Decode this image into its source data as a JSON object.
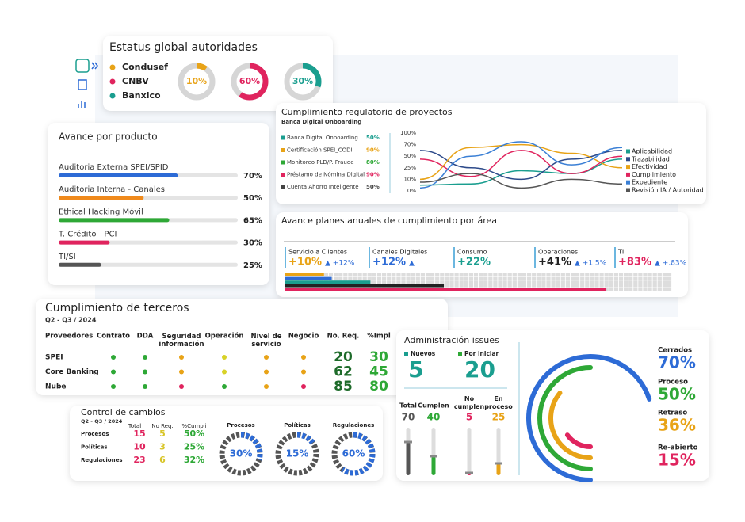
{
  "status": {
    "title": "Estatus global autoridades",
    "items": [
      {
        "name": "Condusef",
        "color": "#e8a317",
        "value": 10,
        "label": "10%"
      },
      {
        "name": "CNBV",
        "color": "#e0245e",
        "value": 60,
        "label": "60%"
      },
      {
        "name": "Banxico",
        "color": "#1a9e8f",
        "value": 30,
        "label": "30%"
      }
    ]
  },
  "producto": {
    "title": "Avance por producto",
    "items": [
      {
        "name": "Auditoria Externa SPEI/SPID",
        "color": "#2d6bd6",
        "value": 70,
        "label": "70%"
      },
      {
        "name": "Auditoria Interna - Canales",
        "color": "#f08a1c",
        "value": 50,
        "label": "50%"
      },
      {
        "name": "Ethical Hacking Móvil",
        "color": "#2ea836",
        "value": 65,
        "label": "65%"
      },
      {
        "name": "T. Crédito - PCI",
        "color": "#e0245e",
        "value": 30,
        "label": "30%"
      },
      {
        "name": "TI/SI",
        "color": "#555555",
        "value": 25,
        "label": "25%"
      }
    ]
  },
  "regulatorio": {
    "title": "Cumplimiento regulatorio de proyectos",
    "subtitle": "Banca Digital Onboarding",
    "projects": [
      {
        "name": "Banca Digital Onboarding",
        "color": "#1a9e8f",
        "label": "50%"
      },
      {
        "name": "Certificación SPEI_CODI",
        "color": "#e8a317",
        "label": "90%"
      },
      {
        "name": "Monitoreo PLD/P. Fraude",
        "color": "#2ea836",
        "label": "80%"
      },
      {
        "name": "Préstamo de Nómina Digital",
        "color": "#e0245e",
        "label": "90%"
      },
      {
        "name": "Cuenta Ahorro Inteligente",
        "color": "#444444",
        "label": "50%"
      }
    ],
    "yticks": [
      "100%",
      "70%",
      "50%",
      "25%",
      "10%",
      "0%"
    ],
    "series": [
      {
        "name": "Aplicabilidad",
        "color": "#1a9e8f",
        "values": [
          10,
          12,
          35,
          30,
          55
        ]
      },
      {
        "name": "Trazabilidad",
        "color": "#2d4a8a",
        "values": [
          70,
          40,
          20,
          55,
          70
        ]
      },
      {
        "name": "Efectividad",
        "color": "#e8a317",
        "values": [
          20,
          75,
          80,
          65,
          40
        ]
      },
      {
        "name": "Cumplimiento",
        "color": "#e0245e",
        "values": [
          55,
          25,
          70,
          30,
          60
        ]
      },
      {
        "name": "Expediente",
        "color": "#3a7fd5",
        "values": [
          5,
          60,
          85,
          45,
          75
        ]
      },
      {
        "name": "Revisión IA / Autoridad",
        "color": "#555555",
        "values": [
          15,
          30,
          5,
          20,
          12
        ]
      }
    ]
  },
  "planes": {
    "title": "Avance planes anuales de cumplimiento por área",
    "areas": [
      {
        "name": "Servicio a Clientes",
        "color": "#e8a317",
        "value": 10,
        "label": "+10%",
        "delta": "▲ +12%"
      },
      {
        "name": "Canales Digitales",
        "color": "#2d6bd6",
        "value": 12,
        "label": "+12%",
        "delta": "▲"
      },
      {
        "name": "Consumo",
        "color": "#1a9e8f",
        "value": 22,
        "label": "+22%"
      },
      {
        "name": "Operaciones",
        "color": "#222222",
        "value": 41,
        "label": "+41%",
        "delta": "▲ +1.5%"
      },
      {
        "name": "TI",
        "color": "#e0245e",
        "value": 83,
        "label": "+83%",
        "delta": "▲ +.83%"
      }
    ]
  },
  "terceros": {
    "title": "Cumplimiento de terceros",
    "subtitle": "Q2 - Q3 / 2024",
    "headers": [
      "Proveedores",
      "Contrato",
      "DDA",
      "Seguridad información",
      "Operación",
      "Nivel de servicio",
      "Negocio",
      "No. Req.",
      "%Impl"
    ],
    "rows": [
      {
        "name": "SPEI",
        "dots": [
          "#2ea836",
          "#2ea836",
          "#e8a317",
          "#d8d228",
          "#e8a317",
          "#e8a317"
        ],
        "no_req": "20",
        "impl": "30"
      },
      {
        "name": "Core Banking",
        "dots": [
          "#2ea836",
          "#2ea836",
          "#e8a317",
          "#d8d228",
          "#e8a317",
          "#e8a317"
        ],
        "no_req": "62",
        "impl": "45"
      },
      {
        "name": "Nube",
        "dots": [
          "#2ea836",
          "#2ea836",
          "#e0245e",
          "#2ea836",
          "#e8a317",
          "#e0245e"
        ],
        "no_req": "85",
        "impl": "80"
      }
    ]
  },
  "issues": {
    "title": "Administración issues",
    "counters": [
      {
        "name": "Nuevos",
        "color": "#1a9e8f",
        "value": "5"
      },
      {
        "name": "Por iniciar",
        "color": "#2ea836",
        "value": "20"
      }
    ],
    "columns": [
      {
        "name": "Total",
        "color": "#555555",
        "value": 70
      },
      {
        "name": "Cumplen",
        "color": "#2ea836",
        "value": 40
      },
      {
        "name": "No cumplen",
        "color": "#e0245e",
        "value": 5
      },
      {
        "name": "En proceso",
        "color": "#e8a317",
        "value": 25
      }
    ],
    "rings": [
      {
        "name": "Cerrados",
        "color": "#2d6bd6",
        "value": 70,
        "label": "70%"
      },
      {
        "name": "Proceso",
        "color": "#2ea836",
        "value": 50,
        "label": "50%"
      },
      {
        "name": "Retraso",
        "color": "#e8a317",
        "value": 36,
        "label": "36%"
      },
      {
        "name": "Re-abierto",
        "color": "#e0245e",
        "value": 15,
        "label": "15%"
      }
    ]
  },
  "cambios": {
    "title": "Control de cambios",
    "subtitle": "Q2 - Q3 / 2024",
    "headers": [
      "Total",
      "No Req.",
      "%Cumpli"
    ],
    "rows": [
      {
        "name": "Procesos",
        "total": "15",
        "no_req": "5",
        "pct": "50%"
      },
      {
        "name": "Políticas",
        "total": "10",
        "no_req": "3",
        "pct": "25%"
      },
      {
        "name": "Regulaciones",
        "total": "23",
        "no_req": "6",
        "pct": "32%"
      }
    ],
    "gauges": [
      {
        "name": "Procesos",
        "value": 30,
        "label": "30%"
      },
      {
        "name": "Políticas",
        "value": 15,
        "label": "15%"
      },
      {
        "name": "Regulaciones",
        "value": 60,
        "label": "60%"
      }
    ]
  }
}
